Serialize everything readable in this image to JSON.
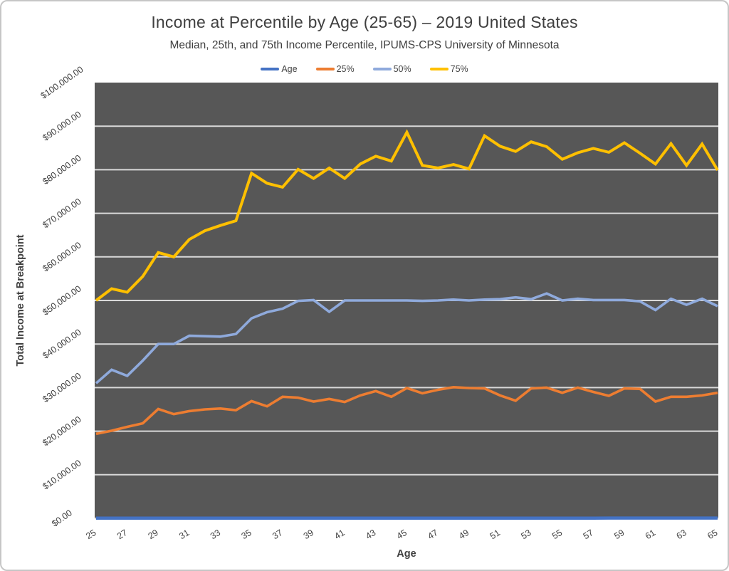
{
  "chart": {
    "title": "Income at Percentile by Age (25-65) – 2019 United States",
    "subtitle": "Median, 25th, and 75th Income Percentile, IPUMS-CPS University of Minnesota",
    "x_axis_title": "Age",
    "y_axis_title": "Total Income at Breakpoint"
  },
  "chart_data": {
    "type": "line",
    "title": "Income at Percentile by Age (25-65) – 2019 United States",
    "subtitle": "Median, 25th, and 75th Income Percentile, IPUMS-CPS University of Minnesota",
    "xlabel": "Age",
    "ylabel": "Total Income at Breakpoint",
    "ylim": [
      0,
      100000
    ],
    "grid": "horizontal-major-every-10000",
    "legend_position": "top-center",
    "plot_background": "#575757",
    "gridline_color": "#d9d9d9",
    "x": [
      25,
      26,
      27,
      28,
      29,
      30,
      31,
      32,
      33,
      34,
      35,
      36,
      37,
      38,
      39,
      40,
      41,
      42,
      43,
      44,
      45,
      46,
      47,
      48,
      49,
      50,
      51,
      52,
      53,
      54,
      55,
      56,
      57,
      58,
      59,
      60,
      61,
      62,
      63,
      64,
      65
    ],
    "x_tick_labels": [
      "25",
      "27",
      "29",
      "31",
      "33",
      "35",
      "37",
      "39",
      "41",
      "43",
      "45",
      "47",
      "49",
      "51",
      "53",
      "55",
      "57",
      "59",
      "61",
      "63",
      "65"
    ],
    "y_tick_labels": [
      "$0.00",
      "$10,000.00",
      "$20,000.00",
      "$30,000.00",
      "$40,000.00",
      "$50,000.00",
      "$60,000.00",
      "$70,000.00",
      "$80,000.00",
      "$90,000.00",
      "$100,000.00"
    ],
    "series": [
      {
        "name": "Age",
        "color": "#4472c4",
        "values": [
          25,
          26,
          27,
          28,
          29,
          30,
          31,
          32,
          33,
          34,
          35,
          36,
          37,
          38,
          39,
          40,
          41,
          42,
          43,
          44,
          45,
          46,
          47,
          48,
          49,
          50,
          51,
          52,
          53,
          54,
          55,
          56,
          57,
          58,
          59,
          60,
          61,
          62,
          63,
          64,
          65
        ]
      },
      {
        "name": "25%",
        "color": "#ed7d31",
        "values": [
          19400,
          20100,
          21000,
          21800,
          25100,
          23900,
          24600,
          25000,
          25200,
          24800,
          26900,
          25700,
          27900,
          27700,
          26800,
          27400,
          26700,
          28200,
          29200,
          27900,
          29900,
          28700,
          29500,
          30100,
          29900,
          29800,
          28200,
          27000,
          29800,
          30000,
          28800,
          30000,
          29000,
          28100,
          29800,
          29700,
          26800,
          27900,
          27900,
          28200,
          28800
        ]
      },
      {
        "name": "50%",
        "color": "#8faadc",
        "values": [
          31000,
          34100,
          32700,
          36200,
          40000,
          40000,
          41900,
          41800,
          41700,
          42300,
          45900,
          47300,
          48100,
          49900,
          50100,
          47400,
          50000,
          50000,
          50000,
          50000,
          50000,
          49900,
          50000,
          50200,
          50000,
          50200,
          50300,
          50700,
          50300,
          51600,
          50000,
          50400,
          50100,
          50100,
          50100,
          49800,
          47800,
          50400,
          49000,
          50400,
          48700
        ]
      },
      {
        "name": "75%",
        "color": "#ffc000",
        "values": [
          50000,
          52700,
          51900,
          55500,
          61000,
          60000,
          64000,
          66000,
          67200,
          68300,
          79200,
          76900,
          76000,
          80100,
          78000,
          80400,
          78000,
          81300,
          83100,
          82000,
          88600,
          81000,
          80400,
          81200,
          80200,
          87800,
          85400,
          84200,
          86400,
          85300,
          82400,
          83900,
          84900,
          84000,
          86200,
          83800,
          81300,
          86000,
          81000,
          85900,
          79900
        ]
      }
    ]
  }
}
